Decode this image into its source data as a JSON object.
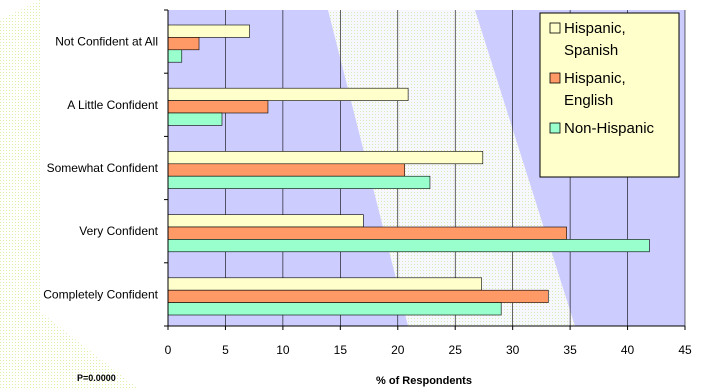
{
  "chart_data": {
    "type": "bar",
    "orientation": "horizontal",
    "categories": [
      "Not Confident at All",
      "A Little Confident",
      "Somewhat Confident",
      "Very Confident",
      "Completely Confident"
    ],
    "series": [
      {
        "name": "Hispanic, Spanish",
        "values": [
          7.1,
          20.9,
          27.4,
          17.0,
          27.3
        ],
        "color": "#ffffcc"
      },
      {
        "name": "Hispanic, English",
        "values": [
          2.7,
          8.7,
          20.6,
          34.7,
          33.1
        ],
        "color": "#ff9966"
      },
      {
        "name": "Non-Hispanic",
        "values": [
          1.2,
          4.7,
          22.8,
          41.9,
          29.0
        ],
        "color": "#99ffcc"
      }
    ],
    "xlabel": "% of Respondents",
    "xlim": [
      0,
      45
    ],
    "xticks": [
      0,
      5,
      10,
      15,
      20,
      25,
      30,
      35,
      40,
      45
    ],
    "grid": true,
    "legend_position": "top-right",
    "plot_background": "#ccccff"
  },
  "note": "P=0.0000"
}
